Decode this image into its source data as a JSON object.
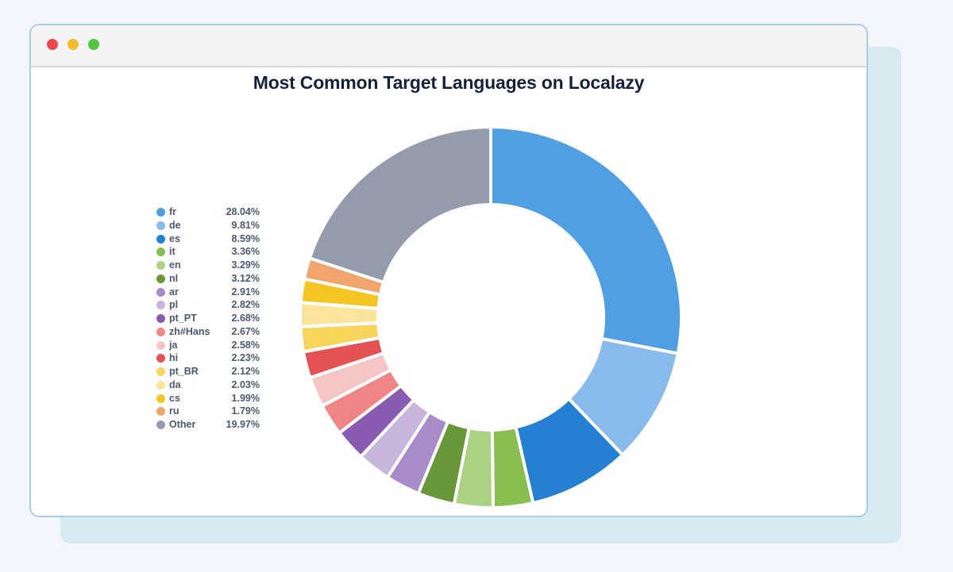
{
  "window": {
    "buttons": [
      {
        "name": "close",
        "color": "#e9494b"
      },
      {
        "name": "minimize",
        "color": "#f6bd2b"
      },
      {
        "name": "maximize",
        "color": "#52c540"
      }
    ]
  },
  "chart_data": {
    "type": "pie",
    "variant": "donut",
    "title": "Most Common Target Languages on Localazy",
    "legend_position": "left",
    "categories": [
      "fr",
      "de",
      "es",
      "it",
      "en",
      "nl",
      "ar",
      "pl",
      "pt_PT",
      "zh#Hans",
      "ja",
      "hi",
      "pt_BR",
      "da",
      "cs",
      "ru",
      "Other"
    ],
    "values": [
      28.04,
      9.81,
      8.59,
      3.36,
      3.29,
      3.12,
      2.91,
      2.82,
      2.68,
      2.67,
      2.58,
      2.23,
      2.12,
      2.03,
      1.99,
      1.79,
      19.97
    ],
    "labels": [
      "28.04%",
      "9.81%",
      "8.59%",
      "3.36%",
      "3.29%",
      "3.12%",
      "2.91%",
      "2.82%",
      "2.68%",
      "2.67%",
      "2.58%",
      "2.23%",
      "2.12%",
      "2.03%",
      "1.99%",
      "1.79%",
      "19.97%"
    ],
    "colors": [
      "#519fe3",
      "#88bbeb",
      "#2580d3",
      "#87be4f",
      "#abd282",
      "#68973a",
      "#a88bc9",
      "#c8b5dc",
      "#8a5bb2",
      "#ef8586",
      "#f6c6c7",
      "#e55254",
      "#f7d45a",
      "#fbe59c",
      "#f5c623",
      "#f1a56c",
      "#949bab"
    ],
    "unit": "%"
  }
}
